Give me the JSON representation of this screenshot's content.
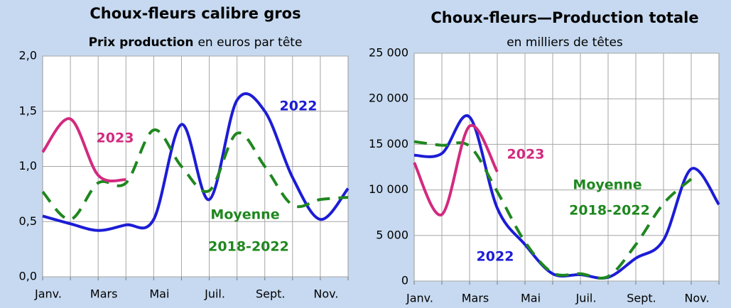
{
  "chart_data": [
    {
      "type": "line",
      "title": "Choux-fleurs calibre gros",
      "subtitle_bold": "Prix production",
      "subtitle": "en euros par tête",
      "categories": [
        "Janv.",
        null,
        "Mars",
        null,
        "Mai",
        null,
        "Juil.",
        null,
        "Sept.",
        null,
        "Nov.",
        null
      ],
      "ylim": [
        0,
        2
      ],
      "yticks": [
        {
          "value": 0,
          "label": "0,0"
        },
        {
          "value": 0.5,
          "label": "0,5"
        },
        {
          "value": 1,
          "label": "1,0"
        },
        {
          "value": 1.5,
          "label": "1,5"
        },
        {
          "value": 2,
          "label": "2,0"
        }
      ],
      "grid": true,
      "series": [
        {
          "name": "2022",
          "color": "#1c1cd6",
          "dash": false,
          "values": [
            0.55,
            0.48,
            0.42,
            0.47,
            0.52,
            1.38,
            0.7,
            1.6,
            1.5,
            0.9,
            0.52,
            0.8
          ]
        },
        {
          "name": "Moyenne 2018-2022",
          "color": "#1f871f",
          "dash": true,
          "values": [
            0.77,
            0.52,
            0.85,
            0.85,
            1.33,
            1.0,
            0.78,
            1.3,
            1.0,
            0.65,
            0.7,
            0.72
          ]
        },
        {
          "name": "2023",
          "color": "#d22a7f",
          "dash": false,
          "values": [
            1.13,
            1.43,
            0.92,
            0.88,
            null,
            null,
            null,
            null,
            null,
            null,
            null,
            null
          ]
        }
      ],
      "annotations": [
        "2023",
        "2022",
        "Moyenne",
        "2018-2022"
      ]
    },
    {
      "type": "line",
      "title": "Choux-fleurs—Production totale",
      "subtitle": "en milliers de têtes",
      "categories": [
        "Janv.",
        null,
        "Mars",
        null,
        "Mai",
        null,
        "Juil.",
        null,
        "Sept.",
        null,
        "Nov.",
        null
      ],
      "ylim": [
        0,
        25000
      ],
      "yticks": [
        0,
        {
          "value": 5000,
          "label": "5 000"
        },
        {
          "value": 10000,
          "label": "10 000"
        },
        {
          "value": 15000,
          "label": "15 000"
        },
        {
          "value": 20000,
          "label": "20 000"
        },
        {
          "value": 25000,
          "label": "25 000"
        }
      ],
      "grid": true,
      "series": [
        {
          "name": "2022",
          "color": "#1c1cd6",
          "dash": false,
          "values": [
            13800,
            14000,
            18000,
            8000,
            4000,
            800,
            700,
            400,
            2500,
            4500,
            12300,
            8400
          ]
        },
        {
          "name": "Moyenne 2018-2022",
          "color": "#1f871f",
          "dash": true,
          "values": [
            15300,
            14900,
            14800,
            9800,
            4300,
            900,
            800,
            500,
            4000,
            8500,
            11200,
            null
          ]
        },
        {
          "name": "2023",
          "color": "#d22a7f",
          "dash": false,
          "values": [
            13000,
            7300,
            17000,
            12000,
            null,
            null,
            null,
            null,
            null,
            null,
            null,
            null
          ]
        }
      ],
      "annotations": [
        "2023",
        "Moyenne",
        "2018-2022",
        "2022"
      ]
    }
  ]
}
